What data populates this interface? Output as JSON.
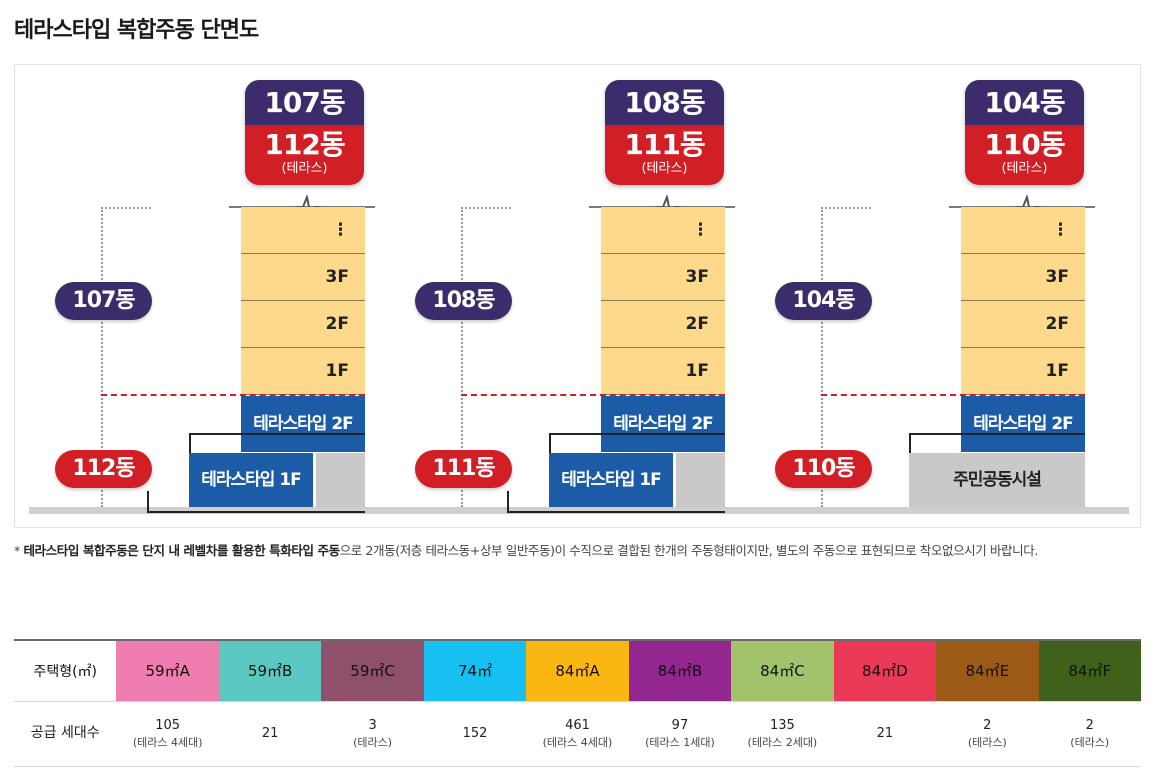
{
  "title": "테라스타입 복합주동 단면도",
  "buildings": [
    {
      "tag_top": "107동",
      "tag_bottom": "112동",
      "tag_sub": "(테라스)",
      "pill_upper": "107동",
      "pill_lower": "112동",
      "floors": [
        "⋮",
        "3F",
        "2F",
        "1F"
      ],
      "terrace_2f": "테라스타입 2F",
      "terrace_1f": "테라스타입 1F",
      "facility": ""
    },
    {
      "tag_top": "108동",
      "tag_bottom": "111동",
      "tag_sub": "(테라스)",
      "pill_upper": "108동",
      "pill_lower": "111동",
      "floors": [
        "⋮",
        "3F",
        "2F",
        "1F"
      ],
      "terrace_2f": "테라스타입 2F",
      "terrace_1f": "테라스타입 1F",
      "facility": ""
    },
    {
      "tag_top": "104동",
      "tag_bottom": "110동",
      "tag_sub": "(테라스)",
      "pill_upper": "104동",
      "pill_lower": "110동",
      "floors": [
        "⋮",
        "3F",
        "2F",
        "1F"
      ],
      "terrace_2f": "테라스타입 2F",
      "terrace_1f": "",
      "facility": "주민공동시설"
    }
  ],
  "note": {
    "prefix": "* ",
    "bold": "테라스타입 복합주동은 단지 내 레벨차를 활용한 특화타입 주동",
    "rest": "으로 2개동(저층 테라스동+상부 일반주동)이 수직으로 결합된 한개의 주동형태이지만, 별도의 주동으로 표현되므로 착오없으시기 바랍니다."
  },
  "table": {
    "row1_label": "주택형(㎡)",
    "row2_label": "공급 세대수",
    "columns": [
      {
        "type": "59㎡A",
        "color": "#f07db0",
        "count": "105",
        "sub": "(테라스 4세대)"
      },
      {
        "type": "59㎡B",
        "color": "#5bc8c1",
        "count": "21",
        "sub": ""
      },
      {
        "type": "59㎡C",
        "color": "#8e506a",
        "count": "3",
        "sub": "(테라스)"
      },
      {
        "type": "74㎡",
        "color": "#16c0f0",
        "count": "152",
        "sub": ""
      },
      {
        "type": "84㎡A",
        "color": "#fbb612",
        "count": "461",
        "sub": "(테라스 4세대)"
      },
      {
        "type": "84㎡B",
        "color": "#93278f",
        "count": "97",
        "sub": "(테라스 1세대)"
      },
      {
        "type": "84㎡C",
        "color": "#a2c26c",
        "count": "135",
        "sub": "(테라스 2세대)"
      },
      {
        "type": "84㎡D",
        "color": "#ea3a58",
        "count": "21",
        "sub": ""
      },
      {
        "type": "84㎡E",
        "color": "#9c5a17",
        "count": "2",
        "sub": "(테라스)"
      },
      {
        "type": "84㎡F",
        "color": "#3f6119",
        "count": "2",
        "sub": "(테라스)"
      }
    ]
  }
}
